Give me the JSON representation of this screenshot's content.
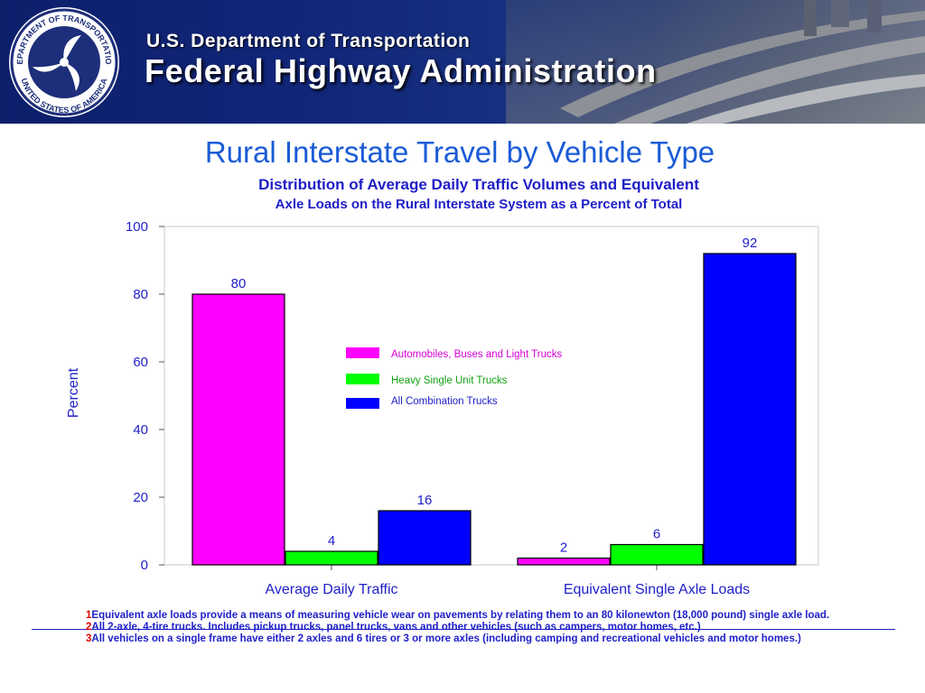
{
  "banner": {
    "agency": "U.S. Department of Transportation",
    "administration": "Federal Highway Administration",
    "seal_text_top": "DEPARTMENT OF TRANSPORTATION",
    "seal_text_bottom": "UNITED STATES OF AMERICA"
  },
  "titles": {
    "main": "Rural Interstate Travel by Vehicle Type",
    "sub1": "Distribution of Average Daily Traffic Volumes and Equivalent",
    "sub2": "Axle Loads on the Rural Interstate System as a Percent of Total"
  },
  "colors": {
    "series_autos": "#ff00ff",
    "series_single_unit": "#00ff00",
    "series_combination": "#0000ff",
    "text_blue": "#1e1ec8",
    "title_blue": "#1a5bd6"
  },
  "chart_data": {
    "type": "bar",
    "ylabel": "Percent",
    "xlabel": "",
    "ylim": [
      0,
      100
    ],
    "yticks": [
      0,
      20,
      40,
      60,
      80,
      100
    ],
    "grid": false,
    "legend_position": "center",
    "categories": [
      "Average Daily Traffic",
      "Equivalent Single Axle Loads"
    ],
    "series": [
      {
        "name": "Automobiles, Buses and Light Trucks",
        "color": "#ff00ff",
        "values": [
          80,
          2
        ],
        "labels": [
          "80",
          "2"
        ]
      },
      {
        "name": "Heavy Single Unit Trucks",
        "color": "#00ff00",
        "values": [
          4,
          6
        ],
        "labels": [
          "4",
          "6"
        ]
      },
      {
        "name": "All Combination Trucks",
        "color": "#0000ff",
        "values": [
          16,
          92
        ],
        "labels": [
          "16",
          "92"
        ]
      }
    ]
  },
  "footnotes": [
    {
      "num": "1",
      "text": "Equivalent axle loads provide a means of measuring vehicle wear on pavements by relating them to an        80 kilonewton (18,000 pound) single axle load."
    },
    {
      "num": "2",
      "text": "All 2-axle, 4-tire trucks.  Includes pickup trucks, panel trucks, vans and other vehicles (such as campers,        motor homes, etc.)"
    },
    {
      "num": "3",
      "text": "All vehicles on a single frame have either 2 axles and 6 tires or 3 or more axles (including camping and        recreational vehicles and motor homes.)"
    }
  ]
}
